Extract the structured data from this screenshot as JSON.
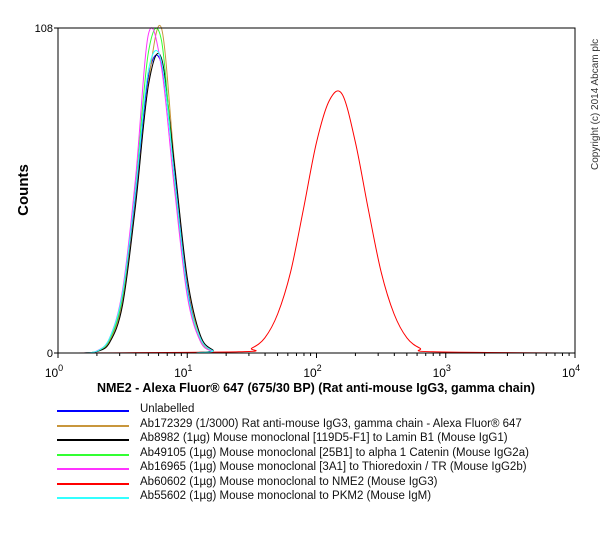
{
  "chart_data": {
    "type": "line",
    "title": "",
    "xlabel": "NME2 - Alexa Fluor® 647 (675/30 BP) (Rat anti-mouse IgG3, gamma chain)",
    "ylabel": "Counts",
    "xscale": "log",
    "xlim": [
      1,
      10000
    ],
    "ylim": [
      0,
      108
    ],
    "x_ticks": [
      {
        "base": "10",
        "exp": "0",
        "value": 1
      },
      {
        "base": "10",
        "exp": "1",
        "value": 10
      },
      {
        "base": "10",
        "exp": "2",
        "value": 100
      },
      {
        "base": "10",
        "exp": "3",
        "value": 1000
      },
      {
        "base": "10",
        "exp": "4",
        "value": 10000
      }
    ],
    "y_ticks": [
      "0",
      "108"
    ],
    "grid": false,
    "legend_position": "bottom",
    "series": [
      {
        "name": "Unlabelled",
        "color": "#0000ff",
        "x": [
          1.58,
          2.0,
          2.51,
          3.16,
          3.98,
          5.01,
          6.31,
          7.94,
          10,
          12.6,
          15.8,
          20
        ],
        "y": [
          0,
          0.5,
          4,
          18,
          52,
          92,
          96,
          60,
          22,
          5,
          0.7,
          0
        ]
      },
      {
        "name": "Ab172329 (1/3000) Rat anti-mouse IgG3, gamma chain - Alexa Fluor® 647",
        "color": "#c8963c",
        "x": [
          1.58,
          2.0,
          2.51,
          3.16,
          3.98,
          5.01,
          6.31,
          7.94,
          10,
          12.6,
          15.8,
          20
        ],
        "y": [
          0,
          0.6,
          4,
          17,
          50,
          90,
          108,
          64,
          24,
          5,
          0.8,
          0
        ]
      },
      {
        "name": "Ab8982 (1µg) Mouse monoclonal [119D5-F1] to Lamin B1 (Mouse IgG1)",
        "color": "#000000",
        "x": [
          1.58,
          2.0,
          2.51,
          3.16,
          3.98,
          5.01,
          6.31,
          7.94,
          10,
          12.6,
          15.8,
          20
        ],
        "y": [
          0,
          0.5,
          3.5,
          16,
          49,
          89,
          98,
          63,
          25,
          6,
          1,
          0
        ]
      },
      {
        "name": "Ab49105 (1µg) Mouse monoclonal [25B1] to alpha 1 Catenin (Mouse IgG2a)",
        "color": "#33ff33",
        "x": [
          1.58,
          2.0,
          2.51,
          3.16,
          3.98,
          5.01,
          6.31,
          7.94,
          10,
          12.6,
          15.8,
          20
        ],
        "y": [
          0,
          0.6,
          4.5,
          19,
          55,
          100,
          104,
          58,
          20,
          4,
          0.6,
          0
        ]
      },
      {
        "name": "Ab16965 (1µg) Mouse monoclonal [3A1] to Thioredoxin / TR (Mouse IgG2b)",
        "color": "#ff33ff",
        "x": [
          1.58,
          2.0,
          2.51,
          3.16,
          3.98,
          5.01,
          6.31,
          7.94,
          10,
          12.6,
          15.8,
          20
        ],
        "y": [
          0,
          0.7,
          5,
          21,
          58,
          106,
          95,
          55,
          19,
          4,
          0.5,
          0
        ]
      },
      {
        "name": "Ab60602 (1µg) Mouse monoclonal to NME2 (Mouse IgG3)",
        "color": "#ff0000",
        "x": [
          25.1,
          31.6,
          39.8,
          50.1,
          63.1,
          79.4,
          100,
          126,
          158,
          200,
          251,
          316,
          398,
          501,
          631,
          794
        ],
        "y": [
          0.4,
          1.6,
          5,
          13,
          27,
          48,
          70,
          84,
          86,
          70,
          48,
          27,
          13,
          5,
          1.6,
          0.4
        ]
      },
      {
        "name": "Ab55602 (1µg) Mouse monoclonal to PKM2 (Mouse IgM)",
        "color": "#33ffff",
        "x": [
          1.58,
          2.0,
          2.51,
          3.16,
          3.98,
          5.01,
          6.31,
          7.94,
          10,
          12.6,
          15.8,
          20
        ],
        "y": [
          0,
          0.6,
          5,
          20,
          54,
          94,
          97,
          59,
          21,
          5,
          0.7,
          0
        ]
      }
    ]
  },
  "copyright": "Copyright (c) 2014 Abcam plc"
}
